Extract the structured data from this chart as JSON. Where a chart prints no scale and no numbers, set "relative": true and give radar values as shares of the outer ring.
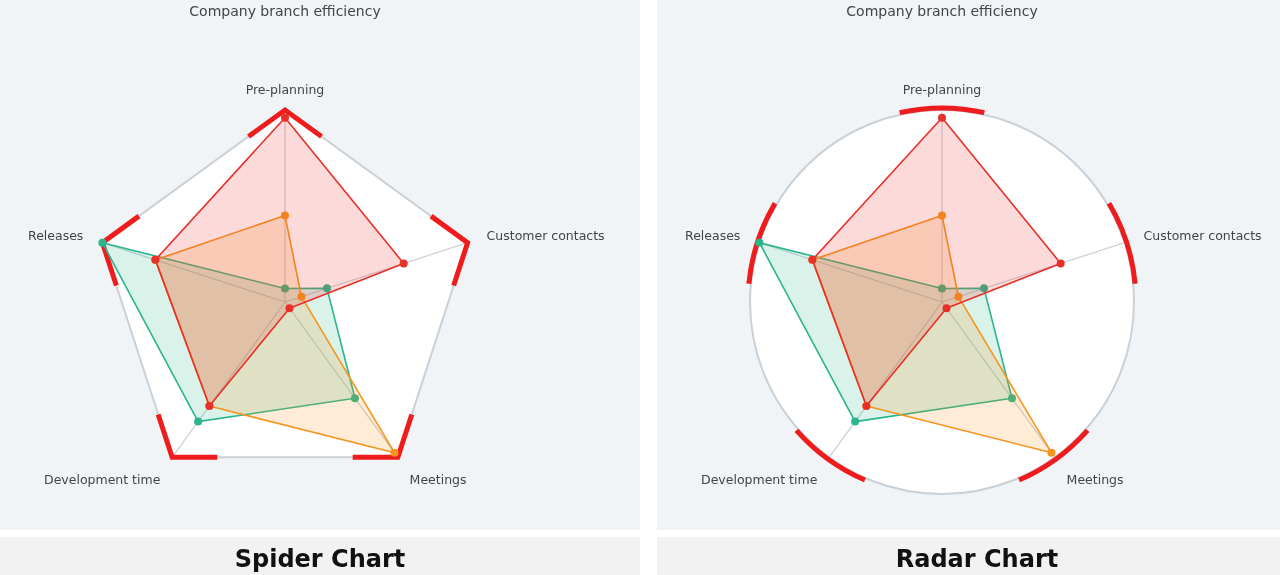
{
  "chart_data": [
    {
      "type": "radar",
      "title": "Company branch efficiency",
      "relative": true,
      "grid": true,
      "marker": "circle",
      "annotations": [
        "Spider Chart"
      ],
      "categories": [
        "Pre-planning",
        "Customer contacts",
        "Meetings",
        "Development time",
        "Releases"
      ],
      "series": [
        {
          "color": "#2bb58a",
          "values": [
            0.07,
            0.23,
            0.62,
            0.77,
            1.0
          ]
        },
        {
          "color": "#f7941d",
          "values": [
            0.45,
            0.09,
            0.97,
            0.67,
            0.71
          ]
        },
        {
          "color": "#e8302a",
          "values": [
            0.96,
            0.65,
            0.04,
            0.67,
            0.71
          ]
        }
      ]
    },
    {
      "type": "radar",
      "title": "Company branch efficiency",
      "relative": true,
      "grid": true,
      "marker": "circle",
      "annotations": [
        "Radar Chart"
      ],
      "categories": [
        "Pre-planning",
        "Customer contacts",
        "Meetings",
        "Development time",
        "Releases"
      ],
      "series": [
        {
          "color": "#2bb58a",
          "values": [
            0.07,
            0.23,
            0.62,
            0.77,
            1.0
          ]
        },
        {
          "color": "#f7941d",
          "values": [
            0.45,
            0.09,
            0.97,
            0.67,
            0.71
          ]
        },
        {
          "color": "#e8302a",
          "values": [
            0.96,
            0.65,
            0.04,
            0.67,
            0.71
          ]
        }
      ]
    }
  ]
}
